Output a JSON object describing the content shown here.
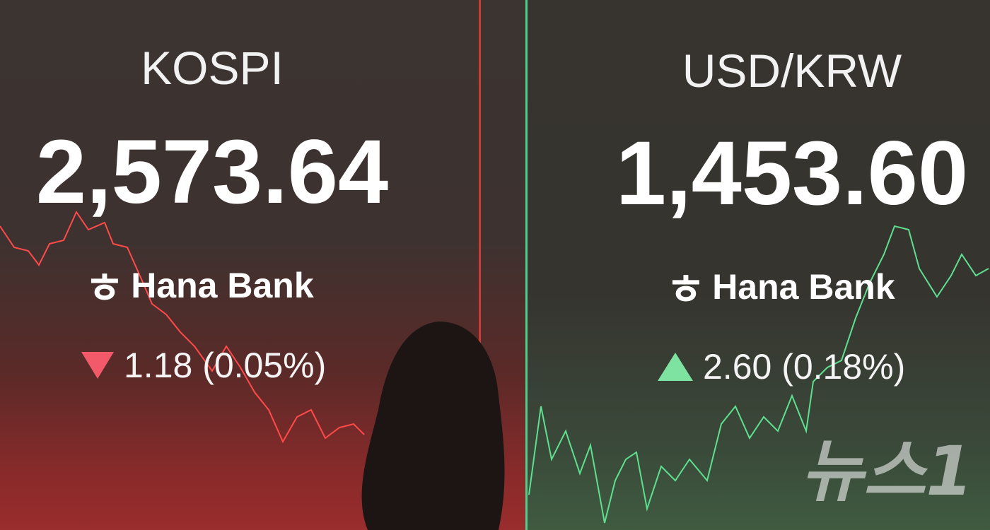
{
  "kospi": {
    "title": "KOSPI",
    "value": "2,573.64",
    "bank": "Hana Bank",
    "direction": "down",
    "change": "1.18 (0.05%)",
    "color": "#f25a6a"
  },
  "usdkrw": {
    "title": "USD/KRW",
    "value": "1,453.60",
    "bank": "Hana Bank",
    "direction": "up",
    "change": "2.60 (0.18%)",
    "color": "#7ee3a0"
  },
  "watermark": "뉴스1"
}
